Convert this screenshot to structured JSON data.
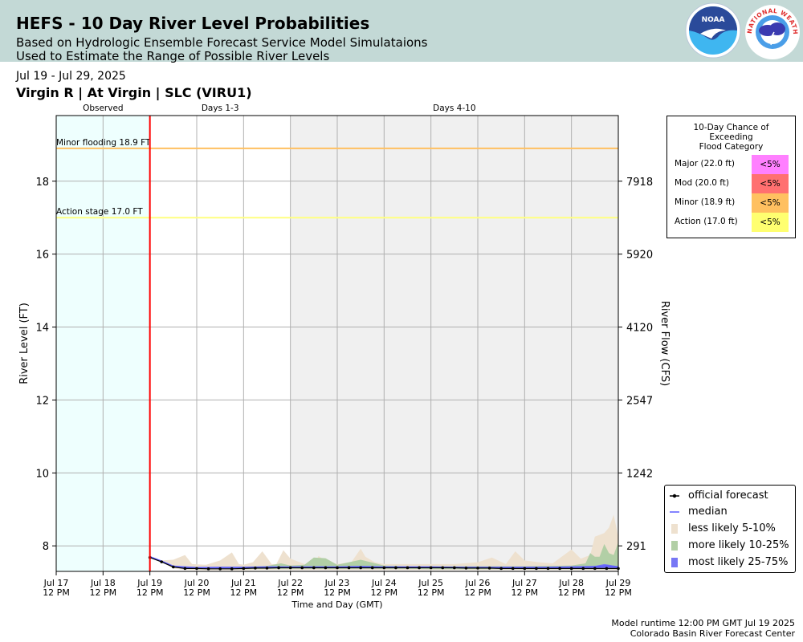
{
  "header": {
    "title": "HEFS - 10 Day River Level Probabilities",
    "subtitle1": "Based on Hydrologic Ensemble Forecast Service Model Simulataions",
    "subtitle2": "Used to Estimate the Range of Possible River Levels",
    "noaa_logo_text": "NOAA",
    "nws_logo_text": "NATIONAL WEATHER SERVICE"
  },
  "date_range": "Jul 19 - Jul 29, 2025",
  "gauge_title": "Virgin R | At Virgin | SLC (VIRU1)",
  "chart_data": {
    "type": "area",
    "xlabel": "Time and Day (GMT)",
    "ylabel": "River Level (FT)",
    "y2label": "River Flow (CFS)",
    "ylim": [
      7.3,
      19.8
    ],
    "xlim": [
      0,
      12
    ],
    "x_ticks": [
      {
        "x": 0,
        "line1": "Jul 17",
        "line2": "12 PM"
      },
      {
        "x": 1,
        "line1": "Jul 18",
        "line2": "12 PM"
      },
      {
        "x": 2,
        "line1": "Jul 19",
        "line2": "12 PM"
      },
      {
        "x": 3,
        "line1": "Jul 20",
        "line2": "12 PM"
      },
      {
        "x": 4,
        "line1": "Jul 21",
        "line2": "12 PM"
      },
      {
        "x": 5,
        "line1": "Jul 22",
        "line2": "12 PM"
      },
      {
        "x": 6,
        "line1": "Jul 23",
        "line2": "12 PM"
      },
      {
        "x": 7,
        "line1": "Jul 24",
        "line2": "12 PM"
      },
      {
        "x": 8,
        "line1": "Jul 25",
        "line2": "12 PM"
      },
      {
        "x": 9,
        "line1": "Jul 26",
        "line2": "12 PM"
      },
      {
        "x": 10,
        "line1": "Jul 27",
        "line2": "12 PM"
      },
      {
        "x": 11,
        "line1": "Jul 28",
        "line2": "12 PM"
      },
      {
        "x": 12,
        "line1": "Jul 29",
        "line2": "12 PM"
      }
    ],
    "y_ticks": [
      8,
      10,
      12,
      14,
      16,
      18
    ],
    "y2_ticks": [
      {
        "stage": 8,
        "flow": "291"
      },
      {
        "stage": 10,
        "flow": "1242"
      },
      {
        "stage": 12,
        "flow": "2547"
      },
      {
        "stage": 14,
        "flow": "4120"
      },
      {
        "stage": 16,
        "flow": "5920"
      },
      {
        "stage": 18,
        "flow": "7918"
      }
    ],
    "periods": [
      {
        "label": "Observed",
        "start": 0,
        "end": 2,
        "color": "#eefffe"
      },
      {
        "label": "Days 1-3",
        "start": 2,
        "end": 5,
        "color": "#ffffff"
      },
      {
        "label": "Days 4-10",
        "start": 5,
        "end": 12,
        "color": "#f0f0f0"
      }
    ],
    "forecast_start": 2,
    "thresholds": [
      {
        "label": "Minor flooding 18.9 FT",
        "value": 18.9,
        "color": "#ffc060"
      },
      {
        "label": "Action stage 17.0 FT",
        "value": 17.0,
        "color": "#ffff80"
      }
    ],
    "series": [
      {
        "name": "official forecast",
        "color": "#000000",
        "x": [
          2.0,
          2.25,
          2.5,
          2.75,
          3.0,
          3.25,
          3.5,
          3.75,
          4.0,
          4.25,
          4.5,
          4.75,
          5.0,
          5.25,
          5.5,
          5.75,
          6.0,
          6.25,
          6.5,
          6.75,
          7.0,
          7.25,
          7.5,
          7.75,
          8.0,
          8.25,
          8.5,
          8.75,
          9.0,
          9.25,
          9.5,
          9.75,
          10.0,
          10.25,
          10.5,
          10.75,
          11.0,
          11.25,
          11.5,
          11.75,
          12.0
        ],
        "y": [
          7.68,
          7.56,
          7.42,
          7.38,
          7.38,
          7.37,
          7.37,
          7.37,
          7.38,
          7.39,
          7.39,
          7.4,
          7.4,
          7.4,
          7.4,
          7.4,
          7.4,
          7.4,
          7.4,
          7.4,
          7.4,
          7.4,
          7.4,
          7.4,
          7.4,
          7.4,
          7.4,
          7.39,
          7.39,
          7.39,
          7.38,
          7.38,
          7.38,
          7.38,
          7.38,
          7.38,
          7.38,
          7.38,
          7.38,
          7.38,
          7.38
        ]
      },
      {
        "name": "median",
        "color": "#5a5aff",
        "x": [
          2.0,
          2.25,
          2.5,
          2.75,
          3.0,
          3.5,
          4.0,
          4.5,
          5.0,
          5.5,
          6.0,
          6.5,
          7.0,
          7.5,
          8.0,
          8.5,
          9.0,
          9.5,
          10.0,
          10.5,
          11.0,
          11.5,
          11.75,
          12.0
        ],
        "y": [
          7.7,
          7.58,
          7.44,
          7.4,
          7.4,
          7.41,
          7.41,
          7.42,
          7.42,
          7.42,
          7.42,
          7.43,
          7.42,
          7.42,
          7.42,
          7.41,
          7.41,
          7.41,
          7.41,
          7.41,
          7.42,
          7.43,
          7.45,
          7.42
        ]
      },
      {
        "name": "less likely 5-10%",
        "color": "#eee1cf",
        "x": [
          2.0,
          2.25,
          2.5,
          2.75,
          2.9,
          3.2,
          3.5,
          3.75,
          3.9,
          4.0,
          4.2,
          4.4,
          4.6,
          4.7,
          4.85,
          5.0,
          5.3,
          5.5,
          5.6,
          5.8,
          6.0,
          6.3,
          6.5,
          6.6,
          6.8,
          7.0,
          7.5,
          8.0,
          8.5,
          9.0,
          9.3,
          9.6,
          9.8,
          10.0,
          10.3,
          10.6,
          11.0,
          11.2,
          11.4,
          11.5,
          11.7,
          11.8,
          11.9,
          12.0
        ],
        "low": [
          7.7,
          7.56,
          7.38,
          7.34,
          7.34,
          7.33,
          7.33,
          7.33,
          7.33,
          7.33,
          7.34,
          7.34,
          7.34,
          7.34,
          7.34,
          7.34,
          7.34,
          7.34,
          7.34,
          7.34,
          7.34,
          7.34,
          7.34,
          7.34,
          7.34,
          7.34,
          7.34,
          7.34,
          7.34,
          7.34,
          7.34,
          7.34,
          7.34,
          7.34,
          7.34,
          7.34,
          7.34,
          7.34,
          7.34,
          7.34,
          7.34,
          7.34,
          7.34,
          7.34
        ],
        "high": [
          7.7,
          7.6,
          7.62,
          7.75,
          7.5,
          7.48,
          7.6,
          7.82,
          7.5,
          7.48,
          7.55,
          7.85,
          7.5,
          7.5,
          7.88,
          7.65,
          7.5,
          7.5,
          7.72,
          7.55,
          7.5,
          7.55,
          7.92,
          7.7,
          7.55,
          7.5,
          7.5,
          7.5,
          7.5,
          7.55,
          7.68,
          7.5,
          7.85,
          7.6,
          7.55,
          7.52,
          7.9,
          7.65,
          7.75,
          8.25,
          8.35,
          8.5,
          8.85,
          8.25
        ]
      },
      {
        "name": "more likely 10-25%",
        "color": "#b2cfa6",
        "x": [
          2.0,
          2.25,
          2.5,
          3.0,
          4.0,
          4.5,
          4.8,
          5.0,
          5.3,
          5.5,
          5.75,
          6.0,
          6.5,
          7.0,
          7.5,
          8.0,
          9.0,
          10.0,
          11.0,
          11.3,
          11.4,
          11.5,
          11.6,
          11.7,
          11.8,
          11.9,
          12.0
        ],
        "low": [
          7.7,
          7.57,
          7.4,
          7.36,
          7.36,
          7.37,
          7.37,
          7.37,
          7.37,
          7.37,
          7.37,
          7.37,
          7.37,
          7.37,
          7.37,
          7.36,
          7.36,
          7.36,
          7.36,
          7.36,
          7.36,
          7.36,
          7.36,
          7.36,
          7.36,
          7.36,
          7.36
        ],
        "high": [
          7.7,
          7.58,
          7.45,
          7.42,
          7.43,
          7.45,
          7.52,
          7.46,
          7.48,
          7.68,
          7.66,
          7.48,
          7.62,
          7.46,
          7.44,
          7.44,
          7.44,
          7.44,
          7.46,
          7.52,
          7.8,
          7.7,
          7.7,
          8.05,
          7.8,
          7.75,
          8.1
        ]
      },
      {
        "name": "most likely 25-75%",
        "color": "#7777f5",
        "x": [
          2.0,
          2.25,
          2.5,
          3.0,
          4.0,
          5.0,
          6.0,
          7.0,
          8.0,
          9.0,
          10.0,
          11.0,
          11.5,
          11.7,
          11.8,
          12.0
        ],
        "low": [
          7.7,
          7.57,
          7.41,
          7.38,
          7.38,
          7.39,
          7.39,
          7.39,
          7.39,
          7.38,
          7.38,
          7.38,
          7.38,
          7.38,
          7.38,
          7.38
        ],
        "high": [
          7.7,
          7.59,
          7.46,
          7.42,
          7.42,
          7.43,
          7.43,
          7.43,
          7.43,
          7.42,
          7.42,
          7.42,
          7.45,
          7.5,
          7.48,
          7.44
        ]
      }
    ],
    "legend": [
      {
        "label": "official forecast",
        "kind": "line-dot",
        "color": "#000000"
      },
      {
        "label": "median",
        "kind": "line",
        "color": "#5a5aff"
      },
      {
        "label": "less likely 5-10%",
        "kind": "box",
        "color": "#eee1cf"
      },
      {
        "label": "more likely 10-25%",
        "kind": "box",
        "color": "#b2cfa6"
      },
      {
        "label": "most likely 25-75%",
        "kind": "box",
        "color": "#7777f5"
      }
    ]
  },
  "exceedance": {
    "title_lines": [
      "10-Day Chance of",
      "Exceeding",
      "Flood Category"
    ],
    "rows": [
      {
        "label": "Major (22.0 ft)",
        "value": "<5%",
        "color": "#ff80ff"
      },
      {
        "label": "Mod (20.0 ft)",
        "value": "<5%",
        "color": "#ff7070"
      },
      {
        "label": "Minor (18.9 ft)",
        "value": "<5%",
        "color": "#ffc060"
      },
      {
        "label": "Action (17.0 ft)",
        "value": "<5%",
        "color": "#ffff70"
      }
    ]
  },
  "footer": {
    "runtime": "Model runtime 12:00 PM GMT Jul 19 2025",
    "center": "Colorado Basin River Forecast Center"
  }
}
